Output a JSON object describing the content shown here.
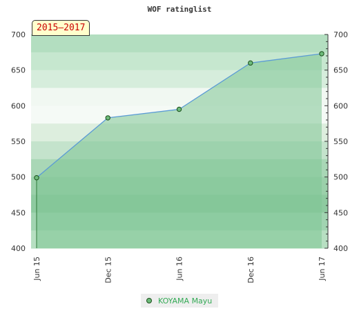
{
  "chart_data": {
    "type": "area",
    "title": "WOF ratinglist",
    "period_label": "2015–2017",
    "categories": [
      "Jun 15",
      "Dec 15",
      "Jun 16",
      "Dec 16",
      "Jun 17"
    ],
    "series": [
      {
        "name": "KOYAMA Mayu",
        "values": [
          499,
          583,
          595,
          660,
          673
        ]
      }
    ],
    "yticks": [
      400,
      450,
      500,
      550,
      600,
      650,
      700
    ],
    "ylim": [
      400,
      700
    ],
    "xlabel": "",
    "ylabel": "",
    "grid": true,
    "legend": "bottom-center",
    "colors": {
      "fill": "#7ec594",
      "line": "#5b9bd5",
      "marker": "#6dbb7a",
      "marker_stroke": "#1a4d1a",
      "legend_text": "#33aa55"
    }
  }
}
